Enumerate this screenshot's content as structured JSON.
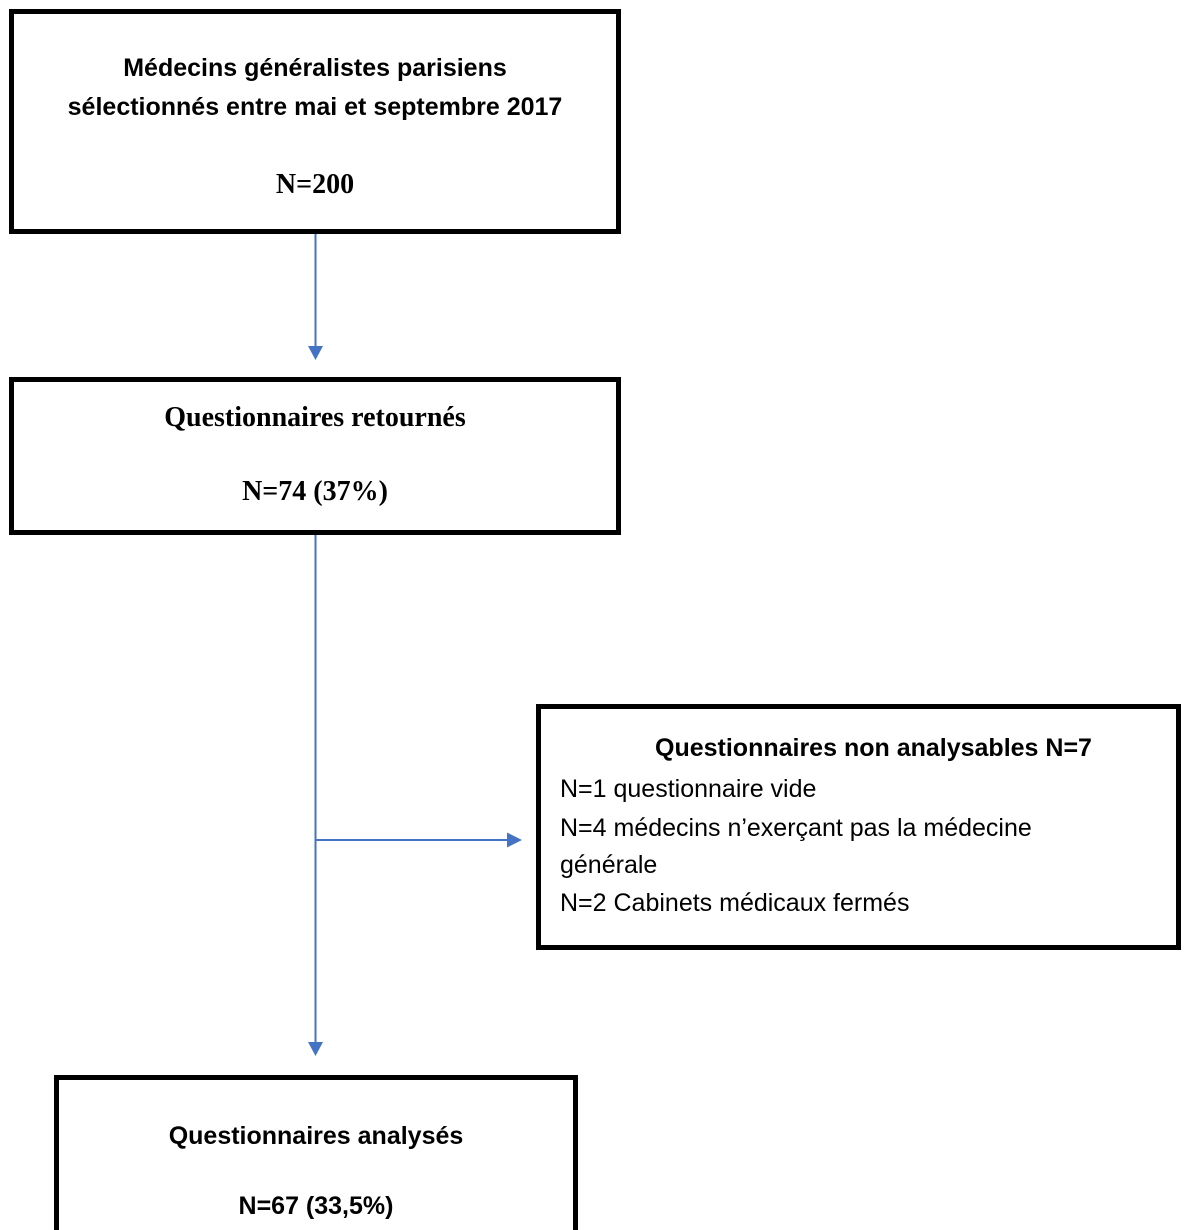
{
  "colors": {
    "box_border": "#000000",
    "connector": "#4472C4",
    "background": "#ffffff"
  },
  "boxes": {
    "selected": {
      "line1": "Médecins généralistes parisiens",
      "line2": "sélectionnés entre mai et septembre 2017",
      "count": "N=200"
    },
    "returned": {
      "title": "Questionnaires retournés",
      "count": "N=74 (37%)"
    },
    "excluded": {
      "title": "Questionnaires non analysables N=7",
      "reasons": [
        "N=1 questionnaire vide",
        "N=4 médecins n’exerçant pas la médecine",
        "générale",
        "N=2 Cabinets médicaux fermés"
      ]
    },
    "analysed": {
      "title": "Questionnaires analysés",
      "count": "N=67 (33,5%)"
    }
  }
}
